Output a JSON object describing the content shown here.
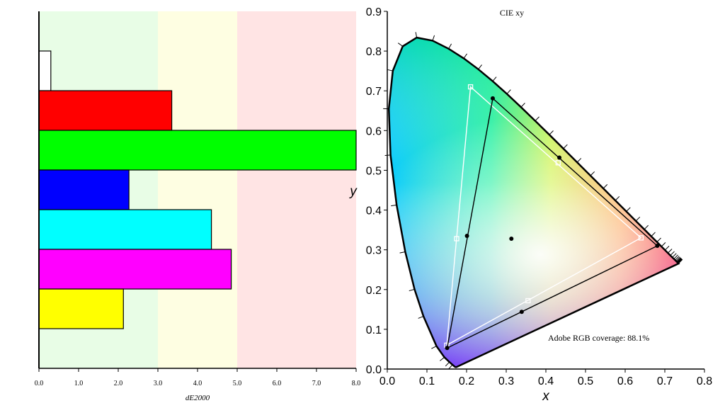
{
  "colors": {
    "good_zone": "#e8fde6",
    "ok_zone": "#fefee2",
    "bad_zone": "#ffe4e4",
    "white_bar": "#ffffff",
    "red_bar": "#ff0000",
    "green_bar": "#00ff00",
    "blue_bar": "#0000ff",
    "cyan_bar": "#00ffff",
    "magenta_bar": "#ff00ff",
    "yellow_bar": "#ffff00",
    "target_gamut": "#ffffff",
    "measured_gamut": "#000000"
  },
  "chart_data": [
    {
      "type": "bar",
      "orientation": "horizontal",
      "categories": [
        "white",
        "red",
        "green",
        "blue",
        "cyan",
        "magenta",
        "yellow"
      ],
      "values": [
        0.3,
        3.35,
        8.0,
        2.27,
        4.35,
        4.85,
        2.13
      ],
      "colors": [
        "#ffffff",
        "#ff0000",
        "#00ff00",
        "#0000ff",
        "#00ffff",
        "#ff00ff",
        "#ffff00"
      ],
      "xlabel": "dE2000",
      "xlim": [
        0,
        8
      ],
      "xticks": [
        "0.0",
        "1.0",
        "2.0",
        "3.0",
        "4.0",
        "5.0",
        "6.0",
        "7.0",
        "8.0"
      ],
      "zones": [
        {
          "from": 0,
          "to": 3,
          "color": "#e8fde6"
        },
        {
          "from": 3,
          "to": 5,
          "color": "#fefee2"
        },
        {
          "from": 5,
          "to": 8,
          "color": "#ffe4e4"
        }
      ]
    },
    {
      "type": "scatter",
      "title": "CIE xy",
      "xlabel": "x",
      "ylabel": "y",
      "xlim": [
        0,
        0.8
      ],
      "ylim": [
        0,
        0.9
      ],
      "xticks": [
        "0.0",
        "0.1",
        "0.2",
        "0.3",
        "0.4",
        "0.5",
        "0.6",
        "0.7",
        "0.8"
      ],
      "yticks": [
        "0.0",
        "0.1",
        "0.2",
        "0.3",
        "0.4",
        "0.5",
        "0.6",
        "0.7",
        "0.8",
        "0.9"
      ],
      "annotation": "Adobe RGB coverage: 88.1%",
      "target_gamut": {
        "primaries": [
          [
            0.64,
            0.33
          ],
          [
            0.21,
            0.71
          ],
          [
            0.15,
            0.06
          ]
        ],
        "secondaries": [
          [
            0.431,
            0.519
          ],
          [
            0.175,
            0.328
          ],
          [
            0.355,
            0.172
          ]
        ]
      },
      "measured_gamut": {
        "primaries": [
          [
            0.681,
            0.31
          ],
          [
            0.266,
            0.681
          ],
          [
            0.151,
            0.053
          ]
        ],
        "secondaries": [
          [
            0.434,
            0.532
          ],
          [
            0.201,
            0.335
          ],
          [
            0.339,
            0.144
          ]
        ]
      },
      "white_point": [
        0.313,
        0.328
      ]
    }
  ]
}
